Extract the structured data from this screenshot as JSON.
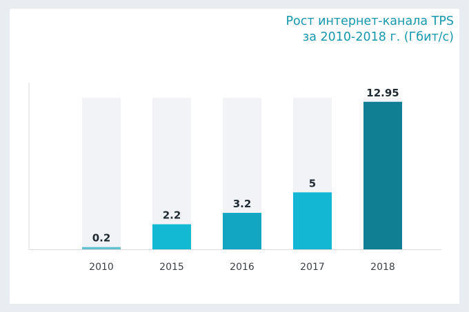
{
  "title_line1": "Рост интернет-канала TPS",
  "title_line2": "за 2010-2018 г. (Гбит/с)",
  "colors": {
    "background": "#e9edf1",
    "card": "#ffffff",
    "track": "#f1f3f6",
    "bar_2010": "#62c1d1",
    "bar_2015": "#13b8d3",
    "bar_2016": "#12a6c3",
    "bar_2017": "#14b7d3",
    "bar_2018": "#107f94",
    "title": "#1597ad",
    "axis": "#d4d9de"
  },
  "chart_data": {
    "type": "bar",
    "title": "Рост интернет-канала TPS за 2010-2018 г. (Гбит/с)",
    "categories": [
      "2010",
      "2015",
      "2016",
      "2017",
      "2018"
    ],
    "values": [
      0.2,
      2.2,
      3.2,
      5,
      12.95
    ],
    "value_labels": [
      "0.2",
      "2.2",
      "3.2",
      "5",
      "12.95"
    ],
    "ylim": [
      0,
      13.3
    ],
    "xlabel": "",
    "ylabel": "",
    "grid": false,
    "legend": "none"
  }
}
